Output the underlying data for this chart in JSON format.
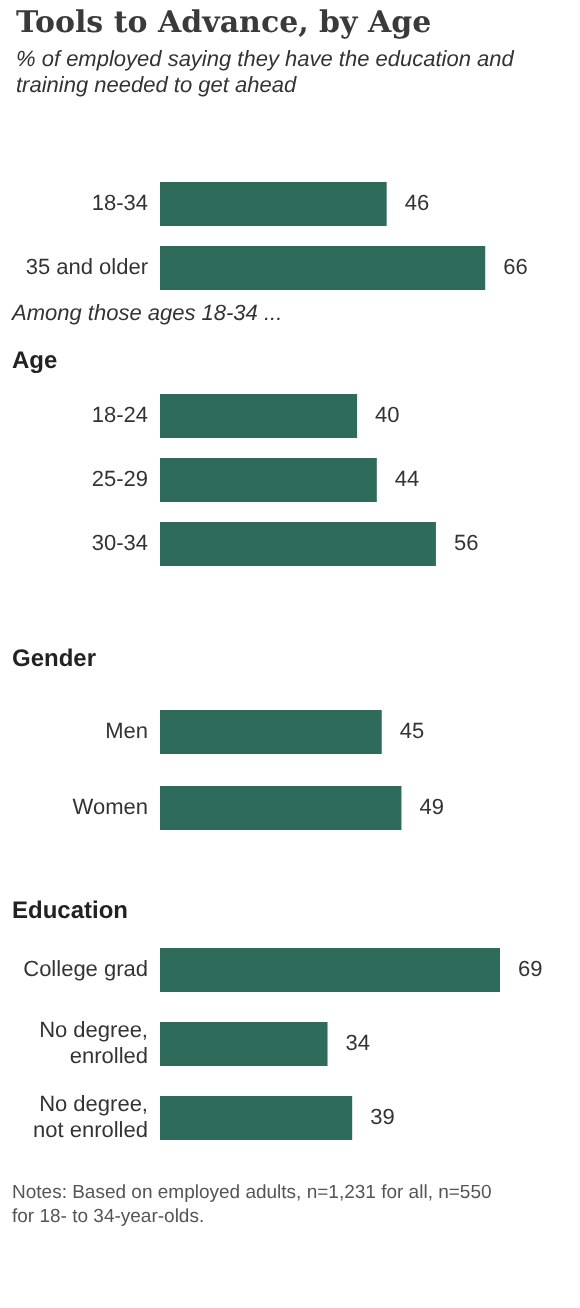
{
  "chart_data": [
    {
      "type": "bar",
      "orientation": "horizontal",
      "title": "Tools to Advance, by Age",
      "subtitle": "% of employed saying they have the education and training needed to get ahead",
      "categories": [
        "18-34",
        "35 and older"
      ],
      "values": [
        46,
        66
      ],
      "color": "#2f6b5b",
      "data_labels": true
    },
    {
      "type": "bar",
      "orientation": "horizontal",
      "subtitle": "Among those ages 18-34 ...",
      "title": "Age",
      "categories": [
        "18-24",
        "25-29",
        "30-34"
      ],
      "values": [
        40,
        44,
        56
      ],
      "color": "#2f6b5b",
      "data_labels": true
    },
    {
      "type": "bar",
      "orientation": "horizontal",
      "title": "Gender",
      "categories": [
        "Men",
        "Women"
      ],
      "values": [
        45,
        49
      ],
      "color": "#2f6b5b",
      "data_labels": true
    },
    {
      "type": "bar",
      "orientation": "horizontal",
      "title": "Education",
      "categories": [
        "College grad",
        "No degree, enrolled",
        "No degree, not enrolled"
      ],
      "values": [
        69,
        34,
        39
      ],
      "color": "#2f6b5b",
      "data_labels": true,
      "annotations": [
        "Notes: Based on employed adults, n=1,231 for all, n=550 for 18- to 34-year-olds."
      ]
    }
  ]
}
